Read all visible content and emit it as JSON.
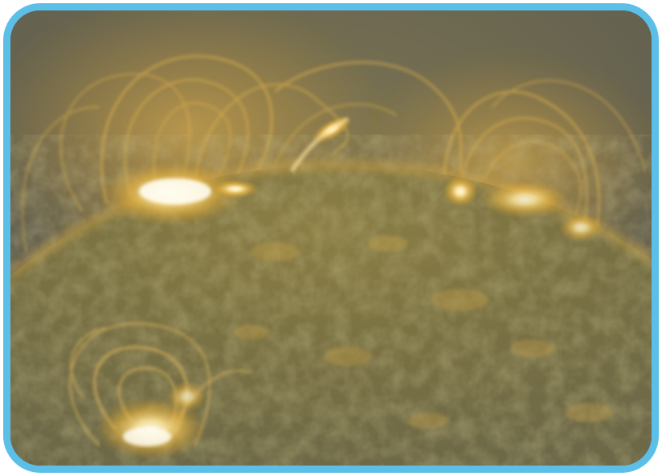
{
  "image": {
    "subject": "sun-corona-loops",
    "colors": {
      "frame": "#5bbfe8",
      "sky": "#6f6b58",
      "surface_dark": "#6a6540",
      "surface_mid": "#8f8346",
      "glow": "#f3c24a",
      "hot": "#fff6d8"
    }
  }
}
